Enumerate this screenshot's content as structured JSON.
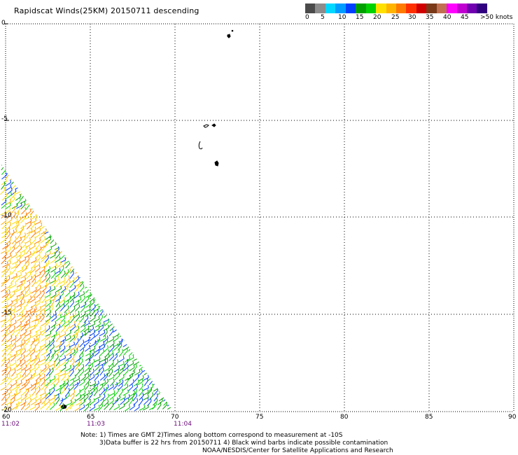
{
  "title": "Rapidscat Winds(25KM) 20150711 descending",
  "legend": {
    "colors": [
      "#4a4a4a",
      "#8c8c8c",
      "#00d8ff",
      "#009cff",
      "#0040ff",
      "#00a000",
      "#00d200",
      "#ffe000",
      "#ffb400",
      "#ff7a00",
      "#ff3000",
      "#d00000",
      "#7a3a1a",
      "#c07050",
      "#ff00ff",
      "#c000d0",
      "#7000b0",
      "#300080"
    ],
    "labels": [
      "0",
      "5",
      "10",
      "15",
      "20",
      "25",
      "30",
      "35",
      "40",
      "45",
      ">50 knots"
    ]
  },
  "lat_labels": [
    "0",
    "-5",
    "-10",
    "-15",
    "-20"
  ],
  "lon_labels": [
    "60",
    "65",
    "70",
    "75",
    "80",
    "85",
    "90"
  ],
  "time_labels": [
    "11:02",
    "11:03",
    "11:04"
  ],
  "notes": {
    "line1": "Note: 1) Times are GMT 2)Times along bottom correspond to measurement at -10S",
    "line2": "3)Data buffer is 22 hrs from 20150711 4) Black wind barbs indicate possible contamination",
    "line3": "NOAA/NESDIS/Center for Satellite Applications and Research"
  }
}
